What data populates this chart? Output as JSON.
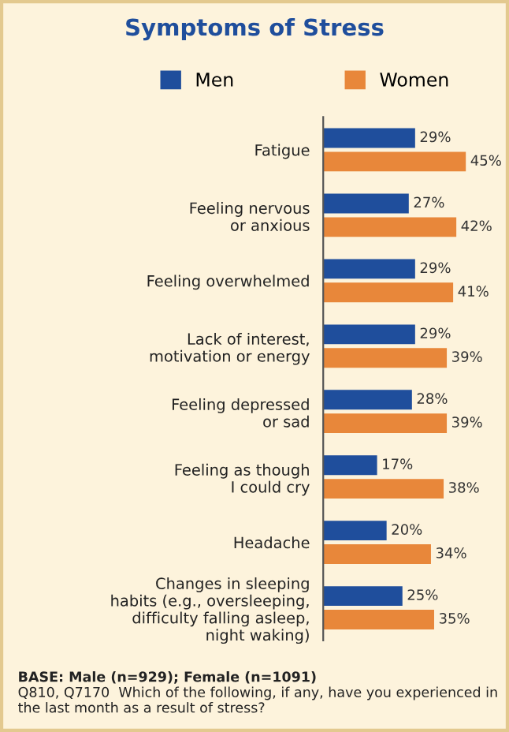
{
  "chart_data": {
    "type": "bar",
    "orientation": "horizontal",
    "title": "Symptoms of Stress",
    "categories": [
      "Fatigue",
      "Feeling nervous\nor anxious",
      "Feeling overwhelmed",
      "Lack of interest,\nmotivation or energy",
      "Feeling depressed\nor sad",
      "Feeling as though\nI could cry",
      "Headache",
      "Changes in sleeping\nhabits (e.g., oversleeping,\ndifficulty falling asleep,\nnight waking)"
    ],
    "series": [
      {
        "name": "Men",
        "color": "#1f4e9c",
        "values": [
          29,
          27,
          29,
          29,
          28,
          17,
          20,
          25
        ],
        "value_labels": [
          "29%",
          "27%",
          "29%",
          "29%",
          "28%",
          "17%",
          "20%",
          "25%"
        ]
      },
      {
        "name": "Women",
        "color": "#e8873a",
        "values": [
          45,
          42,
          41,
          39,
          39,
          38,
          34,
          35
        ],
        "value_labels": [
          "45%",
          "42%",
          "41%",
          "39%",
          "39%",
          "38%",
          "34%",
          "35%"
        ]
      }
    ],
    "legend": "top",
    "annotations": [
      "BASE: Male (n=929); Female (n=1091)",
      "Q810, Q7170  Which of the following, if any, have you experienced in the last month as a result of stress?"
    ]
  }
}
